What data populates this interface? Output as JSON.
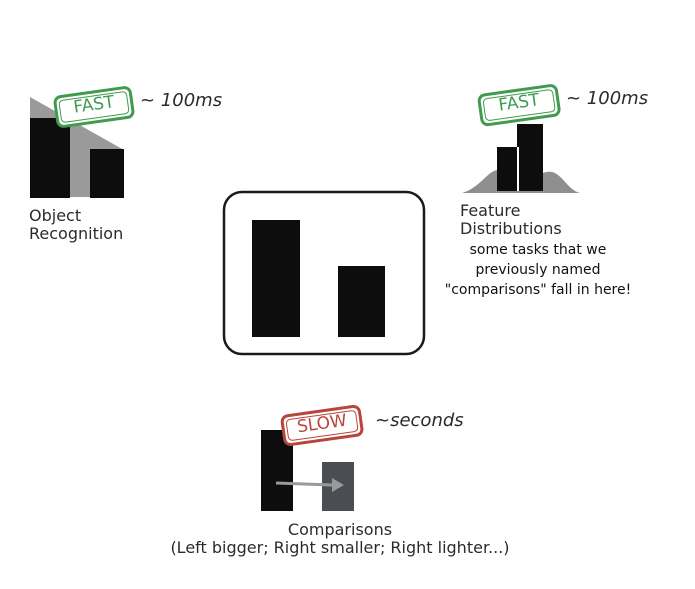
{
  "object_recognition": {
    "stamp": "FAST",
    "timing": "~ 100ms",
    "label_line1": "Object",
    "label_line2": "Recognition"
  },
  "feature_distributions": {
    "stamp": "FAST",
    "timing": "~ 100ms",
    "label_line1": "Feature",
    "label_line2": "Distributions",
    "note_line1": "some tasks that we",
    "note_line2": "previously named",
    "note_line3": "\"comparisons\" fall in here!"
  },
  "comparisons": {
    "stamp": "SLOW",
    "timing": "~seconds",
    "label_line1": "Comparisons",
    "label_line2": "(Left bigger; Right smaller; Right lighter...)"
  },
  "colors": {
    "fast_stamp": "#3f9b4e",
    "slow_stamp": "#b8453b",
    "bar_dark": "#0d0d0d",
    "bar_gray": "#9a9a9a",
    "bar_slate": "#4a4e52"
  }
}
